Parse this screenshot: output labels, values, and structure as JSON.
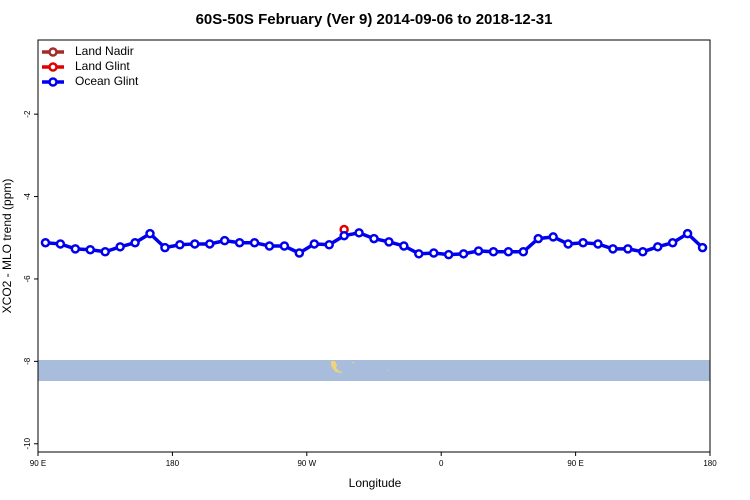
{
  "chart_data": {
    "type": "line",
    "title": "60S-50S February (Ver 9)   2014-09-06 to 2018-12-31",
    "x_label": "Longitude",
    "y_label": "XCO2 - MLO trend (ppm)",
    "xlim": [
      90,
      540
    ],
    "xticks": [
      {
        "value": 90,
        "label": "90 E"
      },
      180,
      {
        "value": 270,
        "label": "90 W"
      },
      {
        "value": 360,
        "label": "0"
      },
      {
        "value": 450,
        "label": "90 E"
      },
      {
        "value": 540,
        "label": "180"
      }
    ],
    "ylim": [
      -10.2,
      -0.2
    ],
    "yticks": [
      -10,
      -8,
      -6,
      -4,
      -2
    ],
    "legend": "top-left",
    "series": [
      {
        "name": "Land Nadir",
        "color": "#a52a2a",
        "x": [],
        "values": []
      },
      {
        "name": "Land Glint",
        "color": "#e00000",
        "x": [
          295
        ],
        "values": [
          -4.8
        ]
      },
      {
        "name": "Ocean Glint",
        "color": "#0000ee",
        "x": [
          95,
          105,
          115,
          125,
          135,
          145,
          155,
          165,
          175,
          185,
          195,
          205,
          215,
          225,
          235,
          245,
          255,
          265,
          275,
          285,
          295,
          305,
          315,
          325,
          335,
          345,
          355,
          365,
          375,
          385,
          395,
          405,
          415,
          425,
          435,
          445,
          455,
          465,
          475,
          485,
          495,
          505,
          515,
          525,
          535
        ],
        "values": [
          -5.12,
          -5.15,
          -5.27,
          -5.29,
          -5.34,
          -5.22,
          -5.12,
          -4.9,
          -5.24,
          -5.17,
          -5.15,
          -5.15,
          -5.07,
          -5.12,
          -5.12,
          -5.2,
          -5.2,
          -5.37,
          -5.15,
          -5.17,
          -4.95,
          -4.88,
          -5.02,
          -5.1,
          -5.2,
          -5.39,
          -5.37,
          -5.41,
          -5.39,
          -5.32,
          -5.34,
          -5.34,
          -5.34,
          -5.02,
          -4.98,
          -5.15,
          -5.12,
          -5.15,
          -5.27,
          -5.27,
          -5.34,
          -5.22,
          -5.12,
          -4.9,
          -5.24
        ]
      }
    ]
  }
}
